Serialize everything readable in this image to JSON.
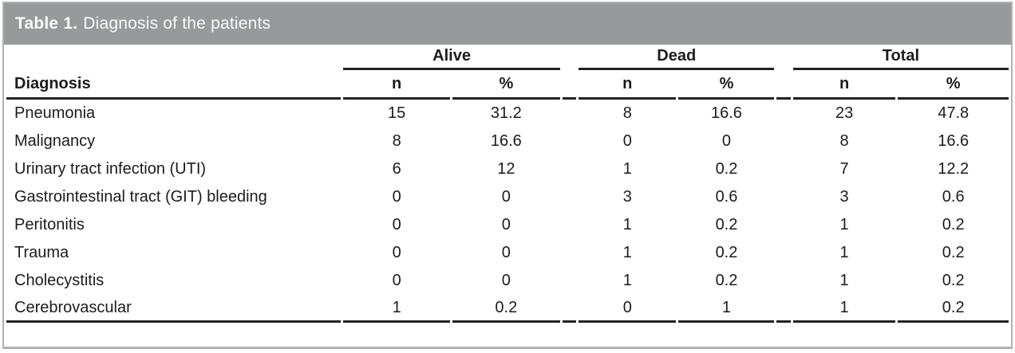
{
  "title": {
    "prefix": "Table 1.",
    "text": "Diagnosis of the patients"
  },
  "table": {
    "diagnosis_header": "Diagnosis",
    "groups": [
      {
        "label": "Alive",
        "sub": [
          "n",
          "%"
        ]
      },
      {
        "label": "Dead",
        "sub": [
          "n",
          "%"
        ]
      },
      {
        "label": "Total",
        "sub": [
          "n",
          "%"
        ]
      }
    ],
    "rows": [
      {
        "diagnosis": "Pneumonia",
        "cells": [
          "15",
          "31.2",
          "8",
          "16.6",
          "23",
          "47.8"
        ]
      },
      {
        "diagnosis": "Malignancy",
        "cells": [
          "8",
          "16.6",
          "0",
          "0",
          "8",
          "16.6"
        ]
      },
      {
        "diagnosis": "Urinary tract infection (UTI)",
        "cells": [
          "6",
          "12",
          "1",
          "0.2",
          "7",
          "12.2"
        ]
      },
      {
        "diagnosis": "Gastrointestinal tract (GIT) bleeding",
        "cells": [
          "0",
          "0",
          "3",
          "0.6",
          "3",
          "0.6"
        ]
      },
      {
        "diagnosis": "Peritonitis",
        "cells": [
          "0",
          "0",
          "1",
          "0.2",
          "1",
          "0.2"
        ]
      },
      {
        "diagnosis": "Trauma",
        "cells": [
          "0",
          "0",
          "1",
          "0.2",
          "1",
          "0.2"
        ]
      },
      {
        "diagnosis": "Cholecystitis",
        "cells": [
          "0",
          "0",
          "1",
          "0.2",
          "1",
          "0.2"
        ]
      },
      {
        "diagnosis": "Cerebrovascular",
        "cells": [
          "1",
          "0.2",
          "0",
          "1",
          "1",
          "0.2"
        ]
      }
    ]
  },
  "colors": {
    "title_bar_background": "#98999b",
    "title_bar_text": "#fafafa",
    "rule": "#222222",
    "outer_border": "#b0b2b4",
    "body_text": "#1c1c1c"
  },
  "chart_data": {
    "type": "table",
    "title": "Table 1. Diagnosis of the patients",
    "columns": [
      "Diagnosis",
      "Alive n",
      "Alive %",
      "Dead n",
      "Dead %",
      "Total n",
      "Total %"
    ],
    "rows": [
      [
        "Pneumonia",
        15,
        31.2,
        8,
        16.6,
        23,
        47.8
      ],
      [
        "Malignancy",
        8,
        16.6,
        0,
        0,
        8,
        16.6
      ],
      [
        "Urinary tract infection (UTI)",
        6,
        12,
        1,
        0.2,
        7,
        12.2
      ],
      [
        "Gastrointestinal tract (GIT) bleeding",
        0,
        0,
        3,
        0.6,
        3,
        0.6
      ],
      [
        "Peritonitis",
        0,
        0,
        1,
        0.2,
        1,
        0.2
      ],
      [
        "Trauma",
        0,
        0,
        1,
        0.2,
        1,
        0.2
      ],
      [
        "Cholecystitis",
        0,
        0,
        1,
        0.2,
        1,
        0.2
      ],
      [
        "Cerebrovascular",
        1,
        0.2,
        0,
        1,
        1,
        0.2
      ]
    ]
  }
}
